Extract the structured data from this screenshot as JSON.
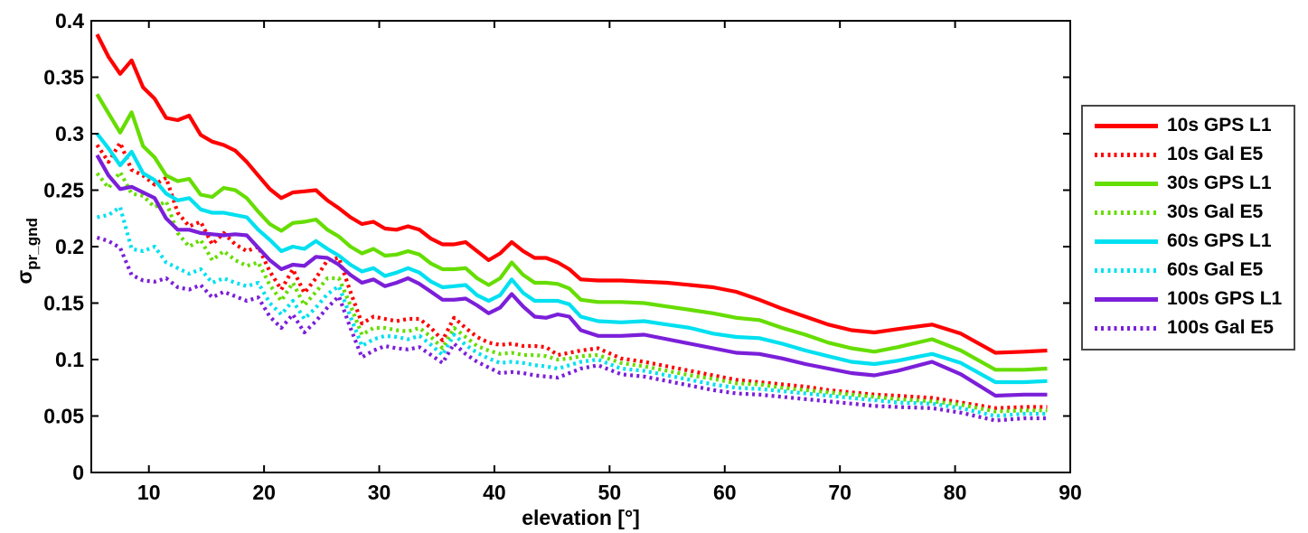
{
  "figure": {
    "background": "#ffffff",
    "axis_color": "#000000",
    "border_color": "#000000"
  },
  "chart_data": {
    "type": "line",
    "title": "",
    "xlabel": "elevation [°]",
    "ylabel": "σ_pr_gnd",
    "ylabel_base": "σ",
    "ylabel_subscript": "pr_gnd",
    "xlim": [
      5,
      90
    ],
    "ylim": [
      0,
      0.4
    ],
    "grid": false,
    "legend_position": "right-outside",
    "x_ticks": [
      10,
      20,
      30,
      40,
      50,
      60,
      70,
      80,
      90
    ],
    "x_tick_labels": [
      "10",
      "20",
      "30",
      "40",
      "50",
      "60",
      "70",
      "80",
      "90"
    ],
    "y_ticks": [
      0,
      0.05,
      0.1,
      0.15,
      0.2,
      0.25,
      0.3,
      0.35,
      0.4
    ],
    "y_tick_labels": [
      "0",
      "0.05",
      "0.1",
      "0.15",
      "0.2",
      "0.25",
      "0.3",
      "0.35",
      "0.4"
    ],
    "x": [
      5.5,
      6.5,
      7.5,
      8.5,
      9.5,
      10.5,
      11.5,
      12.5,
      13.5,
      14.5,
      15.5,
      16.5,
      17.5,
      18.5,
      19.5,
      20.5,
      21.5,
      22.5,
      23.5,
      24.5,
      25.5,
      26.5,
      27.5,
      28.5,
      29.5,
      30.5,
      31.5,
      32.5,
      33.5,
      34.5,
      35.5,
      36.5,
      37.5,
      38.5,
      39.5,
      40.5,
      41.5,
      42.5,
      43.5,
      44.5,
      45.5,
      46.5,
      47.5,
      49,
      51,
      53,
      55,
      57,
      59,
      61,
      63,
      65,
      67,
      69,
      71,
      73,
      75,
      78,
      80.5,
      83.5,
      86,
      88
    ],
    "series": [
      {
        "name": "10s GPS L1",
        "color": "#ff0000",
        "style": "solid",
        "values": [
          0.388,
          0.368,
          0.353,
          0.365,
          0.341,
          0.331,
          0.314,
          0.312,
          0.316,
          0.299,
          0.293,
          0.29,
          0.285,
          0.275,
          0.263,
          0.251,
          0.243,
          0.248,
          0.249,
          0.25,
          0.241,
          0.234,
          0.226,
          0.22,
          0.222,
          0.216,
          0.215,
          0.218,
          0.215,
          0.207,
          0.202,
          0.202,
          0.204,
          0.196,
          0.188,
          0.194,
          0.204,
          0.196,
          0.19,
          0.19,
          0.186,
          0.18,
          0.171,
          0.17,
          0.17,
          0.169,
          0.168,
          0.166,
          0.164,
          0.16,
          0.153,
          0.145,
          0.138,
          0.131,
          0.126,
          0.124,
          0.127,
          0.131,
          0.123,
          0.106,
          0.107,
          0.108
        ]
      },
      {
        "name": "10s Gal E5",
        "color": "#ff0000",
        "style": "dotted",
        "values": [
          0.29,
          0.275,
          0.292,
          0.268,
          0.263,
          0.255,
          0.261,
          0.23,
          0.218,
          0.222,
          0.202,
          0.212,
          0.202,
          0.196,
          0.2,
          0.178,
          0.162,
          0.18,
          0.159,
          0.172,
          0.188,
          0.19,
          0.16,
          0.132,
          0.138,
          0.136,
          0.134,
          0.136,
          0.136,
          0.128,
          0.117,
          0.137,
          0.128,
          0.12,
          0.115,
          0.113,
          0.114,
          0.112,
          0.112,
          0.111,
          0.104,
          0.106,
          0.108,
          0.11,
          0.101,
          0.098,
          0.094,
          0.09,
          0.086,
          0.082,
          0.08,
          0.078,
          0.076,
          0.073,
          0.071,
          0.069,
          0.068,
          0.066,
          0.062,
          0.057,
          0.058,
          0.058
        ]
      },
      {
        "name": "30s GPS L1",
        "color": "#66dd00",
        "style": "solid",
        "values": [
          0.335,
          0.318,
          0.301,
          0.319,
          0.289,
          0.279,
          0.263,
          0.258,
          0.26,
          0.246,
          0.244,
          0.252,
          0.25,
          0.243,
          0.231,
          0.22,
          0.214,
          0.221,
          0.222,
          0.224,
          0.215,
          0.209,
          0.2,
          0.194,
          0.198,
          0.192,
          0.193,
          0.196,
          0.193,
          0.185,
          0.18,
          0.18,
          0.181,
          0.172,
          0.166,
          0.172,
          0.186,
          0.175,
          0.168,
          0.168,
          0.167,
          0.163,
          0.153,
          0.151,
          0.151,
          0.15,
          0.147,
          0.144,
          0.141,
          0.137,
          0.135,
          0.128,
          0.122,
          0.115,
          0.11,
          0.107,
          0.111,
          0.118,
          0.108,
          0.091,
          0.091,
          0.092
        ]
      },
      {
        "name": "30s Gal E5",
        "color": "#66dd00",
        "style": "dotted",
        "values": [
          0.265,
          0.252,
          0.266,
          0.247,
          0.245,
          0.235,
          0.24,
          0.212,
          0.2,
          0.206,
          0.188,
          0.196,
          0.188,
          0.183,
          0.186,
          0.166,
          0.152,
          0.168,
          0.148,
          0.16,
          0.172,
          0.172,
          0.148,
          0.122,
          0.128,
          0.128,
          0.126,
          0.125,
          0.128,
          0.12,
          0.11,
          0.128,
          0.12,
          0.112,
          0.108,
          0.105,
          0.106,
          0.104,
          0.104,
          0.103,
          0.1,
          0.101,
          0.103,
          0.104,
          0.097,
          0.094,
          0.09,
          0.086,
          0.083,
          0.079,
          0.078,
          0.075,
          0.073,
          0.071,
          0.069,
          0.067,
          0.065,
          0.063,
          0.06,
          0.054,
          0.055,
          0.055
        ]
      },
      {
        "name": "60s GPS L1",
        "color": "#00e0f0",
        "style": "solid",
        "values": [
          0.3,
          0.287,
          0.272,
          0.284,
          0.265,
          0.259,
          0.247,
          0.241,
          0.243,
          0.233,
          0.23,
          0.23,
          0.228,
          0.226,
          0.215,
          0.206,
          0.196,
          0.2,
          0.198,
          0.205,
          0.198,
          0.192,
          0.184,
          0.178,
          0.181,
          0.174,
          0.177,
          0.181,
          0.177,
          0.169,
          0.164,
          0.165,
          0.166,
          0.157,
          0.152,
          0.157,
          0.171,
          0.159,
          0.152,
          0.152,
          0.152,
          0.149,
          0.138,
          0.134,
          0.133,
          0.134,
          0.131,
          0.128,
          0.123,
          0.12,
          0.119,
          0.114,
          0.108,
          0.103,
          0.098,
          0.096,
          0.099,
          0.105,
          0.097,
          0.08,
          0.08,
          0.081
        ]
      },
      {
        "name": "60s Gal E5",
        "color": "#00e0f0",
        "style": "dotted",
        "values": [
          0.226,
          0.228,
          0.235,
          0.198,
          0.196,
          0.2,
          0.186,
          0.181,
          0.176,
          0.18,
          0.168,
          0.172,
          0.168,
          0.165,
          0.168,
          0.15,
          0.14,
          0.152,
          0.136,
          0.146,
          0.158,
          0.165,
          0.138,
          0.112,
          0.118,
          0.121,
          0.12,
          0.118,
          0.121,
          0.113,
          0.104,
          0.122,
          0.113,
          0.106,
          0.101,
          0.097,
          0.098,
          0.097,
          0.095,
          0.094,
          0.092,
          0.095,
          0.098,
          0.1,
          0.092,
          0.09,
          0.086,
          0.082,
          0.078,
          0.075,
          0.074,
          0.072,
          0.07,
          0.068,
          0.066,
          0.064,
          0.062,
          0.061,
          0.057,
          0.05,
          0.052,
          0.052
        ]
      },
      {
        "name": "100s GPS L1",
        "color": "#7b1fd9",
        "style": "solid",
        "values": [
          0.281,
          0.263,
          0.251,
          0.253,
          0.248,
          0.243,
          0.225,
          0.215,
          0.215,
          0.212,
          0.211,
          0.21,
          0.211,
          0.21,
          0.199,
          0.188,
          0.18,
          0.184,
          0.183,
          0.191,
          0.19,
          0.184,
          0.175,
          0.168,
          0.171,
          0.165,
          0.168,
          0.172,
          0.167,
          0.16,
          0.153,
          0.153,
          0.154,
          0.148,
          0.141,
          0.146,
          0.158,
          0.147,
          0.138,
          0.137,
          0.14,
          0.138,
          0.126,
          0.121,
          0.121,
          0.122,
          0.118,
          0.114,
          0.11,
          0.106,
          0.105,
          0.101,
          0.096,
          0.092,
          0.088,
          0.086,
          0.09,
          0.098,
          0.087,
          0.068,
          0.069,
          0.069
        ]
      },
      {
        "name": "100s Gal E5",
        "color": "#7b1fd9",
        "style": "dotted",
        "values": [
          0.208,
          0.205,
          0.199,
          0.175,
          0.17,
          0.169,
          0.172,
          0.164,
          0.162,
          0.166,
          0.155,
          0.16,
          0.156,
          0.152,
          0.155,
          0.138,
          0.128,
          0.14,
          0.124,
          0.134,
          0.146,
          0.156,
          0.128,
          0.102,
          0.108,
          0.112,
          0.11,
          0.109,
          0.111,
          0.104,
          0.097,
          0.114,
          0.105,
          0.098,
          0.093,
          0.088,
          0.089,
          0.088,
          0.086,
          0.085,
          0.084,
          0.088,
          0.092,
          0.095,
          0.087,
          0.085,
          0.081,
          0.077,
          0.073,
          0.07,
          0.069,
          0.067,
          0.065,
          0.063,
          0.061,
          0.059,
          0.058,
          0.057,
          0.053,
          0.046,
          0.048,
          0.048
        ]
      }
    ]
  }
}
